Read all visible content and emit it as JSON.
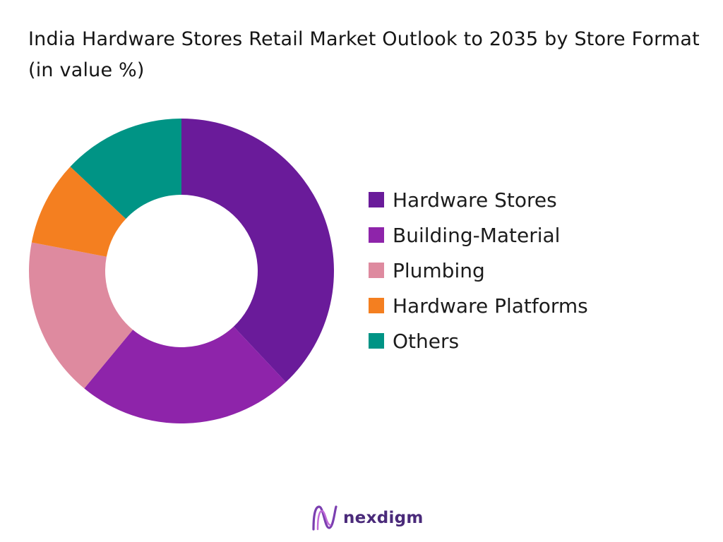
{
  "title": "India Hardware Stores Retail Market Outlook to 2035 by Store Format (in value %)",
  "brand": {
    "name": "nexdigm",
    "logo_icon": "nexdigm-logo-icon"
  },
  "colors": {
    "hardware_stores": "#6a1b9a",
    "building_material": "#8e24aa",
    "plumbing": "#de8a9f",
    "hardware_platforms": "#f47f20",
    "others": "#009485",
    "brand_text": "#4a2a7a"
  },
  "chart_data": {
    "type": "pie",
    "donut": true,
    "start_angle": "top",
    "direction": "clockwise",
    "legend_position": "right",
    "title": "India Hardware Stores Retail Market Outlook to 2035 by Store Format (in value %)",
    "categories": [
      "Hardware Stores",
      "Building-Material",
      "Plumbing",
      "Hardware Platforms",
      "Others"
    ],
    "values": [
      38,
      23,
      17,
      9,
      13
    ],
    "colors": [
      "#6a1b9a",
      "#8e24aa",
      "#de8a9f",
      "#f47f20",
      "#009485"
    ]
  }
}
